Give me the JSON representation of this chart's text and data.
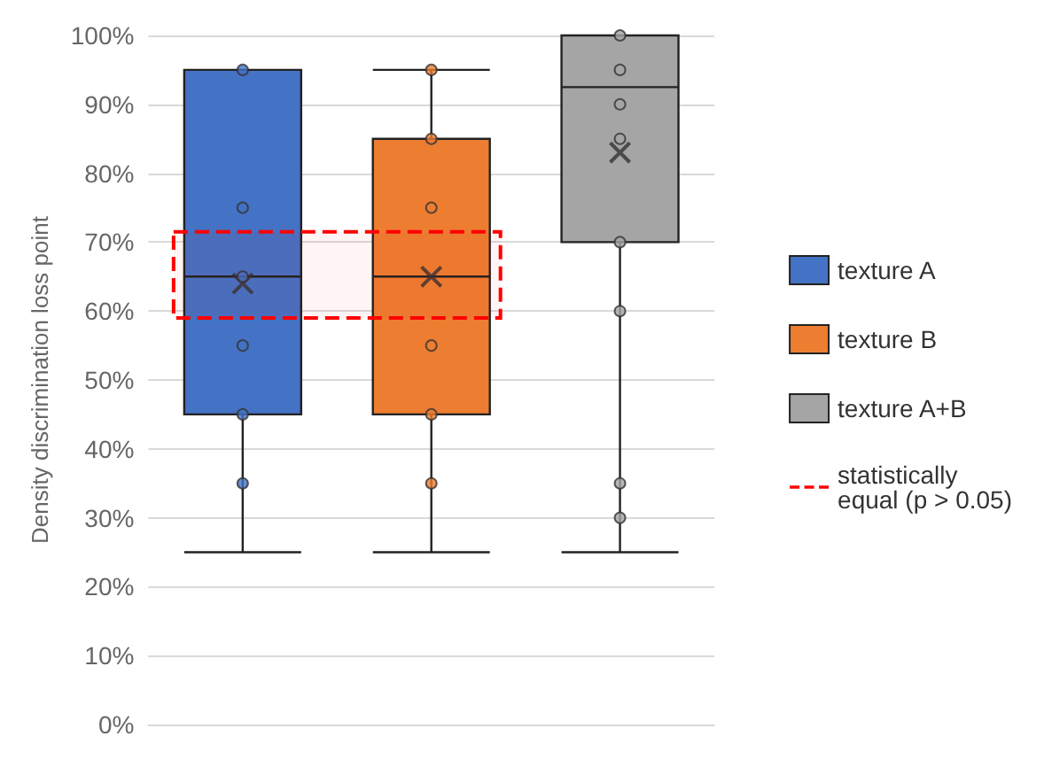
{
  "chart_data": {
    "type": "box",
    "ylabel": "Density discrimination loss point",
    "categories": [
      null,
      null,
      null
    ],
    "series": [
      {
        "name": "texture A",
        "color": "#4472c4",
        "boxes": [
          {
            "low": 25,
            "q1": 45,
            "median": 65,
            "q3": 95,
            "high": 95,
            "mean": 64,
            "outliers": [
              95,
              75,
              65,
              55,
              45,
              35
            ]
          },
          null,
          null
        ]
      },
      {
        "name": "texture B",
        "color": "#ed7d31",
        "boxes": [
          null,
          {
            "low": 25,
            "q1": 45,
            "median": 65,
            "q3": 85,
            "high": 95,
            "mean": 65,
            "outliers": [
              95,
              85,
              75,
              55,
              45,
              35
            ]
          },
          null
        ]
      },
      {
        "name": "texture A+B",
        "color": "#a5a5a5",
        "boxes": [
          null,
          null,
          {
            "low": 25,
            "q1": 70,
            "median": 92.5,
            "q3": 100,
            "high": 100,
            "mean": 83,
            "outliers": [
              100,
              95,
              90,
              85,
              70,
              60,
              35,
              30
            ]
          }
        ]
      }
    ],
    "bands": [
      {
        "axis": "y",
        "from": 59,
        "to": 71.5,
        "label": "statistically equal (p > 0.05)",
        "color": "#ff0000"
      }
    ],
    "ylim": [
      0,
      100
    ],
    "yticks": [
      {
        "value": 0,
        "label": "0%"
      },
      {
        "value": 10,
        "label": "10%"
      },
      {
        "value": 20,
        "label": "20%"
      },
      {
        "value": 30,
        "label": "30%"
      },
      {
        "value": 40,
        "label": "40%"
      },
      {
        "value": 50,
        "label": "50%"
      },
      {
        "value": 60,
        "label": "60%"
      },
      {
        "value": 70,
        "label": "70%"
      },
      {
        "value": 80,
        "label": "80%"
      },
      {
        "value": 90,
        "label": "90%"
      },
      {
        "value": 100,
        "label": "100%"
      }
    ],
    "grid": "y",
    "legend": "right",
    "tick_labels": "y"
  }
}
